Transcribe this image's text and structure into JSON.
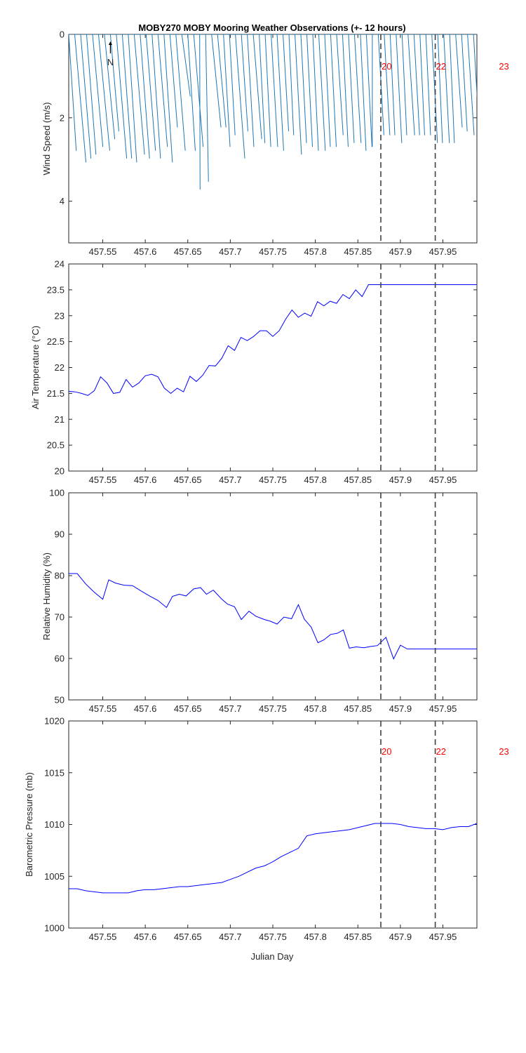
{
  "title": "MOBY270 MOBY Mooring Weather Observations (+- 12 hours)",
  "xlabel": "Julian Day",
  "x_ticks": [
    "457.55",
    "457.6",
    "457.65",
    "457.7",
    "457.75",
    "457.8",
    "457.85",
    "457.9",
    "457.95"
  ],
  "colors": {
    "wind": "#1f77b4",
    "series": "#0000ff",
    "marker_line": "#404040",
    "marker_text": "#ff0000",
    "axis": "#262626"
  },
  "markers": [
    {
      "x": 457.877,
      "label": "20"
    },
    {
      "x": 457.941,
      "label": "22"
    },
    {
      "x": 458.015,
      "label": "23"
    }
  ],
  "north_label": "N",
  "chart_data": [
    {
      "type": "line",
      "name": "wind",
      "ylabel": "Wind Speed (m/s)",
      "xlim": [
        457.51,
        457.99
      ],
      "ylim": [
        0,
        5
      ],
      "y_reversed": true,
      "y_ticks": [
        "0",
        "2",
        "4"
      ],
      "show_markers": false,
      "note": "stick plot",
      "series": [
        {
          "x": [
            457.51,
            457.517,
            457.524,
            457.531,
            457.538,
            457.545,
            457.552,
            457.559,
            457.566,
            457.573,
            457.58,
            457.587,
            457.594,
            457.601,
            457.608,
            457.615,
            457.622,
            457.629,
            457.636,
            457.643,
            457.65,
            457.657,
            457.664,
            457.671,
            457.678,
            457.685,
            457.692,
            457.699,
            457.706,
            457.713,
            457.72,
            457.727,
            457.734,
            457.741,
            457.748,
            457.755,
            457.762,
            457.769,
            457.776,
            457.783,
            457.79,
            457.797,
            457.804,
            457.811,
            457.818,
            457.825,
            457.832,
            457.839,
            457.846,
            457.853,
            457.86,
            457.867,
            457.874,
            457.881,
            457.888,
            457.895,
            457.902,
            457.909,
            457.916,
            457.923,
            457.93,
            457.937,
            457.944,
            457.951,
            457.958,
            457.965,
            457.972,
            457.979,
            457.986
          ],
          "u": [
            0.4,
            0.6,
            0.55,
            0.5,
            0.55,
            0.6,
            0.55,
            0.45,
            0.55,
            0.5,
            0.45,
            0.55,
            0.5,
            0.5,
            0.45,
            0.5,
            0.45,
            0.4,
            0.5,
            0.45,
            0.4,
            0.5,
            0.02,
            0.15,
            0.5,
            0.45,
            0.35,
            0.3,
            0.5,
            0.35,
            0.35,
            0.45,
            0.3,
            0.3,
            0.35,
            0.35,
            0.3,
            0.25,
            0.35,
            0.3,
            0.3,
            0.3,
            0.35,
            0.3,
            0.3,
            0.35,
            0.3,
            0.3,
            0.35,
            0.3,
            0.3,
            0.0,
            0.3,
            0.3,
            0.25,
            0.3,
            0.25,
            0.35,
            0.3,
            0.25,
            0.25,
            0.3,
            0.25,
            0.3,
            0.25,
            0.35,
            0.3,
            0.35,
            0.3
          ],
          "v": [
            3.0,
            3.3,
            3.2,
            3.1,
            2.9,
            3.0,
            2.7,
            2.5,
            3.2,
            3.2,
            3.3,
            3.1,
            3.2,
            3.0,
            3.2,
            2.9,
            3.3,
            2.4,
            3.0,
            1.6,
            3.0,
            2.9,
            4.0,
            3.8,
            2.4,
            2.4,
            2.9,
            2.6,
            3.2,
            2.5,
            2.9,
            2.7,
            2.8,
            2.9,
            2.9,
            3.0,
            2.5,
            2.6,
            3.1,
            2.8,
            2.9,
            3.0,
            3.0,
            2.9,
            2.9,
            2.6,
            2.9,
            2.8,
            2.8,
            3.0,
            2.9,
            2.9,
            2.6,
            2.6,
            2.6,
            2.8,
            2.6,
            2.6,
            2.6,
            2.6,
            2.6,
            2.8,
            2.8,
            2.8,
            2.8,
            2.4,
            2.5,
            2.6,
            2.5
          ]
        }
      ]
    },
    {
      "type": "line",
      "name": "air",
      "ylabel": "Air Temperature (°C)",
      "xlim": [
        457.51,
        457.99
      ],
      "ylim": [
        20,
        24
      ],
      "y_ticks": [
        "20",
        "20.5",
        "21",
        "21.5",
        "22",
        "22.5",
        "23",
        "23.5",
        "24"
      ],
      "series": [
        {
          "x": [
            457.51,
            457.5175,
            457.525,
            457.5325,
            457.54,
            457.5475,
            457.555,
            457.5625,
            457.57,
            457.5775,
            457.585,
            457.5925,
            457.6,
            457.6075,
            457.615,
            457.6225,
            457.63,
            457.6375,
            457.645,
            457.6525,
            457.66,
            457.6675,
            457.675,
            457.6825,
            457.69,
            457.6975,
            457.705,
            457.7125,
            457.72,
            457.7275,
            457.735,
            457.7425,
            457.75,
            457.7575,
            457.765,
            457.7725,
            457.78,
            457.7875,
            457.795,
            457.8025,
            457.81,
            457.8175,
            457.825,
            457.8325,
            457.84,
            457.8475,
            457.855,
            457.8625,
            457.87,
            457.8775,
            457.885,
            457.8925,
            457.9,
            457.9075,
            457.915,
            457.9225,
            457.93,
            457.9375,
            457.945,
            457.9525,
            457.96,
            457.9675,
            457.975,
            457.9825,
            457.99
          ],
          "y": [
            21.54,
            21.53,
            21.5,
            21.46,
            21.55,
            21.82,
            21.7,
            21.5,
            21.52,
            21.77,
            21.62,
            21.7,
            21.84,
            21.87,
            21.82,
            21.6,
            21.5,
            21.6,
            21.53,
            21.83,
            21.73,
            21.85,
            22.04,
            22.03,
            22.18,
            22.42,
            22.33,
            22.58,
            22.52,
            22.6,
            22.71,
            22.71,
            22.6,
            22.71,
            22.93,
            23.11,
            22.97,
            23.05,
            22.99,
            23.27,
            23.19,
            23.28,
            23.24,
            23.41,
            23.33,
            23.5,
            23.37,
            23.6,
            23.6,
            23.6,
            23.6,
            23.6,
            23.6,
            23.6,
            23.6,
            23.6,
            23.6,
            23.6,
            23.6,
            23.6,
            23.6,
            23.6,
            23.6,
            23.6,
            23.6
          ]
        }
      ]
    },
    {
      "type": "line",
      "name": "humidity",
      "ylabel": "Relative Humidity (%)",
      "xlim": [
        457.51,
        457.99
      ],
      "ylim": [
        50,
        100
      ],
      "y_ticks": [
        "50",
        "60",
        "70",
        "80",
        "90",
        "100"
      ],
      "series": [
        {
          "x": [
            457.51,
            457.52,
            457.53,
            457.54,
            457.55,
            457.557,
            457.565,
            457.575,
            457.585,
            457.595,
            457.605,
            457.615,
            457.625,
            457.632,
            457.64,
            457.648,
            457.657,
            457.665,
            457.672,
            457.68,
            457.69,
            457.697,
            457.705,
            457.713,
            457.722,
            457.73,
            457.74,
            457.747,
            457.755,
            457.763,
            457.772,
            457.78,
            457.787,
            457.795,
            457.803,
            457.81,
            457.818,
            457.826,
            457.833,
            457.84,
            457.848,
            457.857,
            457.865,
            457.873,
            457.883,
            457.892,
            457.9,
            457.908,
            457.917,
            457.925,
            457.933,
            457.941,
            457.95,
            457.958,
            457.965,
            457.973,
            457.98,
            457.99
          ],
          "y": [
            80.5,
            80.5,
            78.0,
            76.0,
            74.3,
            79.0,
            78.2,
            77.7,
            77.6,
            76.3,
            75.1,
            74.0,
            72.3,
            75.0,
            75.5,
            75.1,
            76.8,
            77.1,
            75.5,
            76.5,
            74.3,
            73.1,
            72.5,
            69.4,
            71.4,
            70.2,
            69.4,
            69.0,
            68.3,
            70.0,
            69.6,
            73.0,
            69.5,
            67.6,
            63.8,
            64.5,
            65.8,
            66.1,
            66.9,
            62.5,
            62.8,
            62.6,
            62.9,
            63.1,
            65.1,
            59.9,
            63.2,
            62.3,
            62.3,
            62.3,
            62.3,
            62.3,
            62.3,
            62.3,
            62.3,
            62.3,
            62.3,
            62.3
          ]
        }
      ]
    },
    {
      "type": "line",
      "name": "pressure",
      "ylabel": "Barometric Pressure (mb)",
      "xlim": [
        457.51,
        457.99
      ],
      "ylim": [
        1000,
        1020
      ],
      "y_ticks": [
        "1000",
        "1005",
        "1010",
        "1015",
        "1020"
      ],
      "series": [
        {
          "x": [
            457.51,
            457.52,
            457.53,
            457.54,
            457.55,
            457.56,
            457.57,
            457.58,
            457.59,
            457.6,
            457.61,
            457.62,
            457.63,
            457.64,
            457.65,
            457.66,
            457.67,
            457.68,
            457.69,
            457.7,
            457.71,
            457.72,
            457.73,
            457.74,
            457.75,
            457.76,
            457.77,
            457.78,
            457.79,
            457.8,
            457.81,
            457.82,
            457.83,
            457.84,
            457.85,
            457.86,
            457.87,
            457.88,
            457.89,
            457.9,
            457.91,
            457.92,
            457.93,
            457.94,
            457.95,
            457.96,
            457.97,
            457.98,
            457.99
          ],
          "y": [
            1003.8,
            1003.8,
            1003.6,
            1003.5,
            1003.4,
            1003.4,
            1003.4,
            1003.4,
            1003.6,
            1003.7,
            1003.7,
            1003.8,
            1003.9,
            1004.0,
            1004.0,
            1004.1,
            1004.2,
            1004.3,
            1004.4,
            1004.7,
            1005.0,
            1005.4,
            1005.8,
            1006.0,
            1006.4,
            1006.9,
            1007.3,
            1007.7,
            1008.9,
            1009.1,
            1009.2,
            1009.3,
            1009.4,
            1009.5,
            1009.7,
            1009.9,
            1010.1,
            1010.1,
            1010.1,
            1010.0,
            1009.8,
            1009.7,
            1009.6,
            1009.6,
            1009.5,
            1009.7,
            1009.8,
            1009.8,
            1010.1
          ]
        }
      ]
    }
  ]
}
